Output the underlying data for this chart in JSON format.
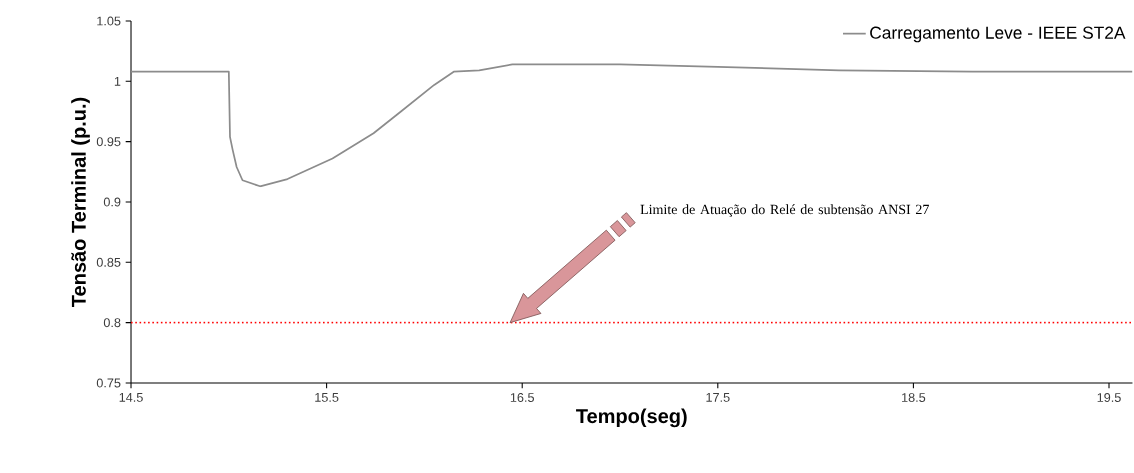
{
  "chart_data": {
    "type": "line",
    "xlabel": "Tempo(seg)",
    "ylabel": "Tensão Terminal (p.u.)",
    "x": [
      14.5,
      15.0,
      15.006,
      15.02,
      15.04,
      15.07,
      15.16,
      15.3,
      15.53,
      15.74,
      15.88,
      16.05,
      16.15,
      16.28,
      16.45,
      16.74,
      17.0,
      17.5,
      18.12,
      18.8,
      19.62
    ],
    "series": [
      {
        "name": "Carregamento Leve - IEEE ST2A",
        "color": "#8c8c8c",
        "values": [
          1.008,
          1.008,
          0.954,
          0.943,
          0.929,
          0.918,
          0.913,
          0.919,
          0.936,
          0.957,
          0.975,
          0.997,
          1.008,
          1.009,
          1.014,
          1.014,
          1.014,
          1.012,
          1.009,
          1.008,
          1.008
        ]
      }
    ],
    "xlim": [
      14.5,
      19.62
    ],
    "xticks": [
      14.5,
      15.5,
      16.5,
      17.5,
      18.5,
      19.5
    ],
    "ylim": [
      0.75,
      1.05
    ],
    "yticks": [
      0.75,
      0.8,
      0.85,
      0.9,
      0.95,
      1,
      1.05
    ],
    "ref_lines": [
      {
        "axis": "y",
        "value": 0.8,
        "color": "#ff0000",
        "line_style": "dotted"
      }
    ],
    "annotations": [
      "Limite de Atuação do Relé de subtensão ANSI 27"
    ],
    "legend": "top right",
    "grid": false,
    "marker": "none",
    "line_style": "solid"
  }
}
